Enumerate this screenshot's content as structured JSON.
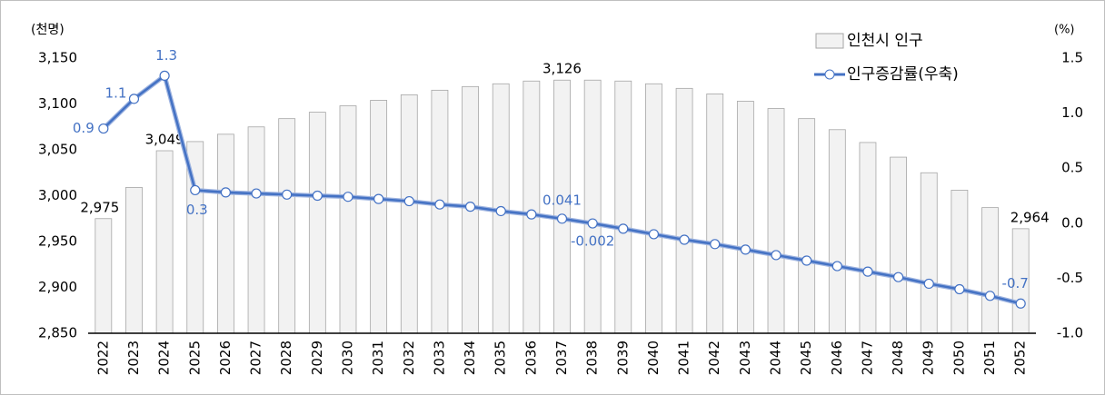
{
  "chart_data": {
    "type": "bar+line",
    "y_label": "(천명)",
    "y2_label": "(%)",
    "categories": [
      "2022",
      "2023",
      "2024",
      "2025",
      "2026",
      "2027",
      "2028",
      "2029",
      "2030",
      "2031",
      "2032",
      "2033",
      "2034",
      "2035",
      "2036",
      "2037",
      "2038",
      "2039",
      "2040",
      "2041",
      "2042",
      "2043",
      "2044",
      "2045",
      "2046",
      "2047",
      "2048",
      "2049",
      "2050",
      "2051",
      "2052"
    ],
    "series": [
      {
        "name": "인천시 인구",
        "type": "bar",
        "color": "#f2f2f2",
        "values": [
          2975,
          3009,
          3049,
          3059,
          3067,
          3075,
          3084,
          3091,
          3098,
          3104,
          3110,
          3115,
          3119,
          3122,
          3125,
          3126,
          3126,
          3125,
          3122,
          3117,
          3111,
          3103,
          3095,
          3084,
          3072,
          3058,
          3042,
          3025,
          3006,
          2987,
          2964
        ],
        "value_labels": [
          "2,975",
          null,
          "3,049",
          null,
          null,
          null,
          null,
          null,
          null,
          null,
          null,
          null,
          null,
          null,
          null,
          "3,126",
          null,
          null,
          null,
          null,
          null,
          null,
          null,
          null,
          null,
          null,
          null,
          null,
          null,
          null,
          "2,964"
        ]
      },
      {
        "name": "인구증감률(우축)",
        "type": "line",
        "axis": "y2",
        "color": "#4472c4",
        "values": [
          0.86,
          1.13,
          1.34,
          0.3,
          0.28,
          0.27,
          0.26,
          0.25,
          0.24,
          0.22,
          0.2,
          0.17,
          0.15,
          0.11,
          0.08,
          0.041,
          -0.002,
          -0.05,
          -0.1,
          -0.15,
          -0.19,
          -0.24,
          -0.29,
          -0.34,
          -0.39,
          -0.44,
          -0.49,
          -0.55,
          -0.6,
          -0.66,
          -0.73
        ],
        "value_labels": [
          "0.9",
          "1.1",
          "1.3",
          "0.3",
          null,
          null,
          null,
          null,
          null,
          null,
          null,
          null,
          null,
          null,
          null,
          "0.041",
          "-0.002",
          null,
          null,
          null,
          null,
          null,
          null,
          null,
          null,
          null,
          null,
          null,
          null,
          null,
          "-0.7"
        ]
      }
    ],
    "ylim": [
      2850,
      3150
    ],
    "yticks": [
      {
        "value": 2850,
        "label": "2,850"
      },
      {
        "value": 2900,
        "label": "2,900"
      },
      {
        "value": 2950,
        "label": "2,950"
      },
      {
        "value": 3000,
        "label": "3,000"
      },
      {
        "value": 3050,
        "label": "3,050"
      },
      {
        "value": 3100,
        "label": "3,100"
      },
      {
        "value": 3150,
        "label": "3,150"
      }
    ],
    "y2lim": [
      -1,
      1.5
    ],
    "y2ticks": [
      {
        "value": -1,
        "label": "-1.0"
      },
      -0.5,
      {
        "value": 0,
        "label": "0.0"
      },
      0.5,
      {
        "value": 1,
        "label": "1.0"
      },
      1.5
    ],
    "legend": "upper right"
  }
}
